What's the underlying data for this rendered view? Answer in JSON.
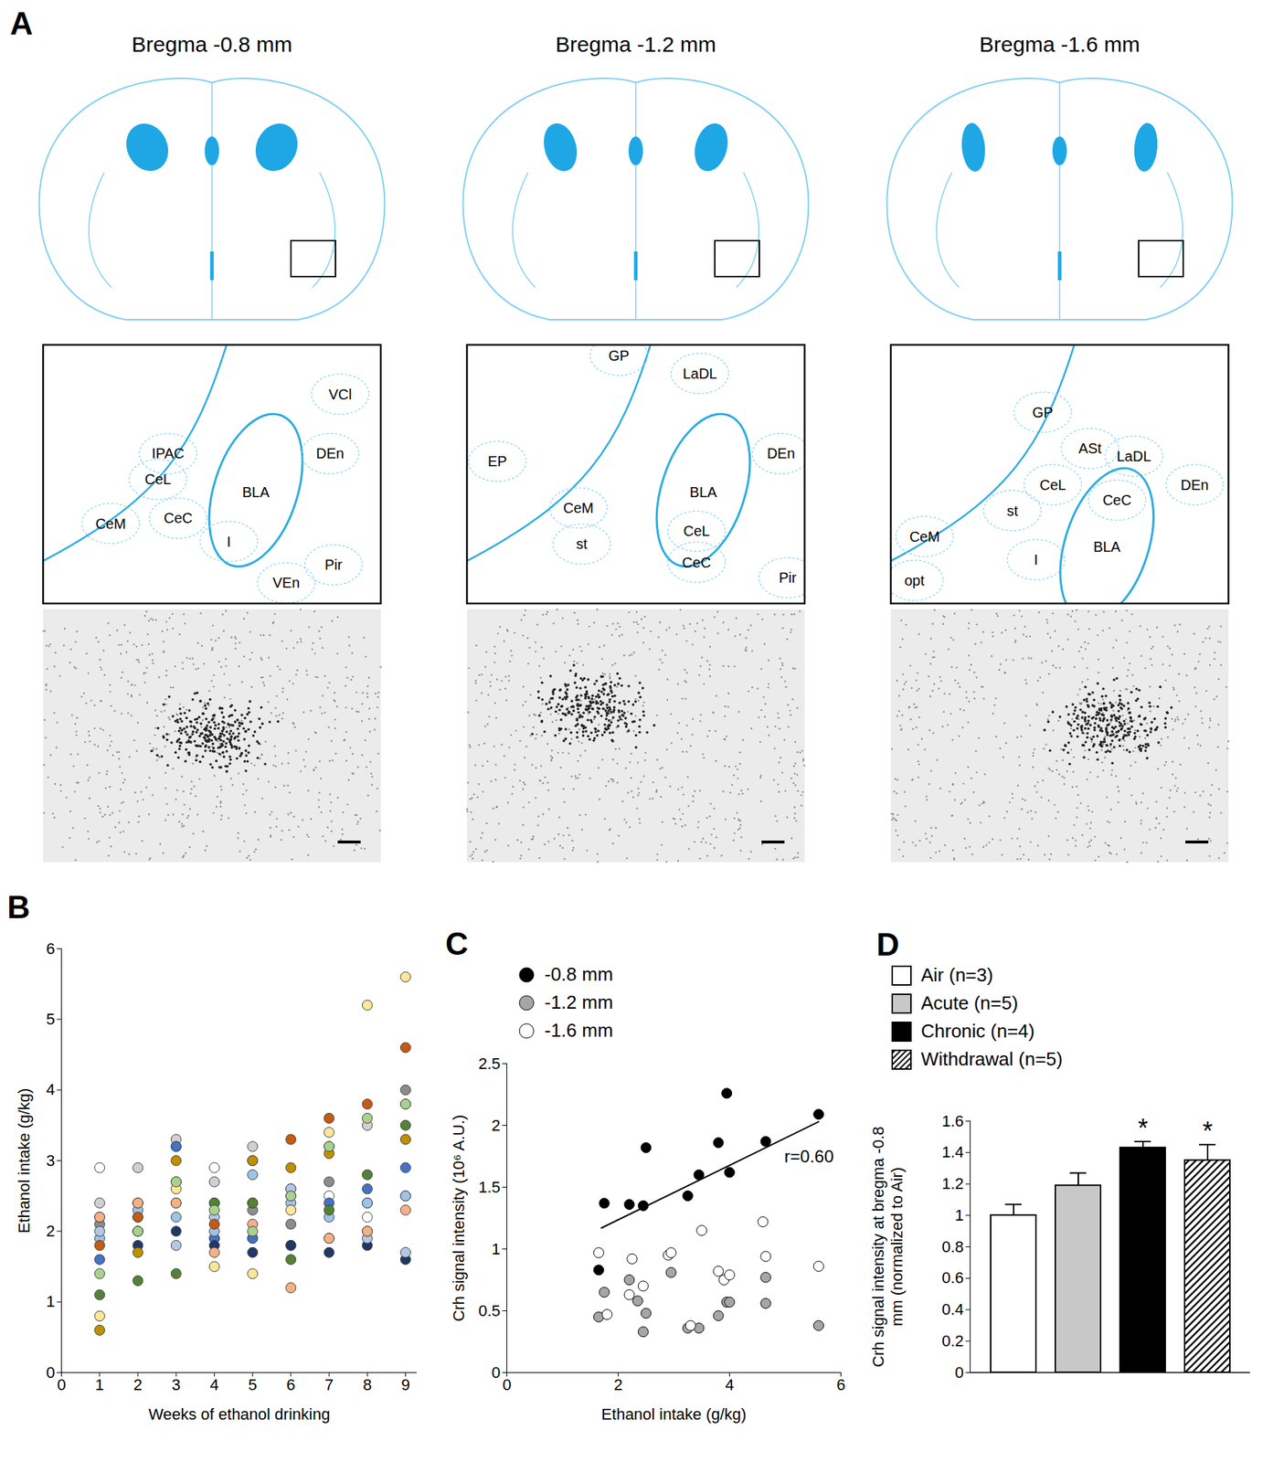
{
  "panel_A": {
    "label": "A",
    "sections": [
      {
        "title": "Bregma -0.8 mm",
        "regions": [
          "IPAC",
          "CeL",
          "CeM",
          "CeC",
          "BLA",
          "VCl",
          "DEn",
          "I",
          "VEn",
          "Pir"
        ]
      },
      {
        "title": "Bregma -1.2 mm",
        "regions": [
          "GP",
          "LaDL",
          "EP",
          "DEn",
          "BLA",
          "CeM",
          "CeL",
          "st",
          "CeC",
          "Pir"
        ]
      },
      {
        "title": "Bregma -1.6 mm",
        "regions": [
          "GP",
          "ASt",
          "LaDL",
          "CeL",
          "CeC",
          "DEn",
          "st",
          "BLA",
          "CeM",
          "I",
          "opt"
        ]
      }
    ]
  },
  "chart_data": [
    {
      "title": "B",
      "type": "scatter",
      "marker": "circle",
      "grid": false,
      "x": [
        1,
        2,
        3,
        4,
        5,
        6,
        7,
        8,
        9
      ],
      "series": [
        {
          "color": "#ffffff",
          "values": [
            2.9,
            2.0,
            2.7,
            2.9,
            1.9,
            2.6,
            2.5,
            2.2,
            2.5
          ]
        },
        {
          "color": "#d0d0d0",
          "values": [
            2.4,
            2.9,
            3.3,
            2.7,
            3.2,
            2.5,
            3.2,
            3.5,
            3.8
          ]
        },
        {
          "color": "#8c8c8c",
          "values": [
            2.1,
            2.2,
            3.2,
            1.9,
            2.3,
            2.1,
            2.7,
            2.4,
            4.0
          ]
        },
        {
          "color": "#4472c4",
          "values": [
            1.6,
            2.0,
            3.2,
            1.9,
            1.9,
            1.8,
            2.4,
            2.6,
            2.9
          ]
        },
        {
          "color": "#203864",
          "values": [
            2.2,
            1.8,
            2.0,
            1.8,
            1.7,
            1.8,
            1.7,
            1.8,
            1.6
          ]
        },
        {
          "color": "#9dc3e6",
          "values": [
            1.9,
            2.3,
            2.2,
            2.0,
            2.8,
            2.4,
            2.2,
            2.4,
            2.5
          ]
        },
        {
          "color": "#b4c7e7",
          "values": [
            2.0,
            2.4,
            1.8,
            2.2,
            2.4,
            2.6,
            1.9,
            1.9,
            1.7
          ]
        },
        {
          "color": "#c55a11",
          "values": [
            1.8,
            2.2,
            2.4,
            2.1,
            3.0,
            3.3,
            3.6,
            3.8,
            4.6
          ]
        },
        {
          "color": "#bf9000",
          "values": [
            0.6,
            1.7,
            3.0,
            2.4,
            3.0,
            2.9,
            3.1,
            2.0,
            3.3
          ]
        },
        {
          "color": "#ffe699",
          "values": [
            0.8,
            2.4,
            2.6,
            1.5,
            1.4,
            2.3,
            3.4,
            5.2,
            5.6
          ]
        },
        {
          "color": "#f4b183",
          "values": [
            2.2,
            2.4,
            2.4,
            1.7,
            2.1,
            1.2,
            1.9,
            2.0,
            2.3
          ]
        },
        {
          "color": "#548235",
          "values": [
            1.1,
            1.3,
            1.4,
            2.4,
            2.4,
            1.6,
            2.3,
            2.8,
            3.5
          ]
        },
        {
          "color": "#a9d18e",
          "values": [
            1.4,
            2.0,
            2.7,
            2.3,
            2.0,
            2.5,
            3.2,
            3.6,
            3.8
          ]
        }
      ],
      "xlabel": "Weeks of ethanol drinking",
      "ylabel": "Ethanol intake (g/kg)",
      "xlim": [
        0,
        9.3
      ],
      "xticks": [
        0,
        1,
        2,
        3,
        4,
        5,
        6,
        7,
        8,
        9
      ],
      "ylim": [
        0,
        6
      ],
      "yticks": [
        0,
        1,
        2,
        3,
        4,
        5,
        6
      ]
    },
    {
      "title": "C",
      "type": "scatter",
      "marker": "circle",
      "grid": false,
      "legend": "top-left",
      "series": [
        {
          "name": "-0.8 mm",
          "color": "#000000",
          "x": [
            1.65,
            1.75,
            2.2,
            2.45,
            2.5,
            3.25,
            3.45,
            3.8,
            3.95,
            4.0,
            4.65,
            5.6
          ],
          "values": [
            0.83,
            1.37,
            1.36,
            1.35,
            1.82,
            1.43,
            1.6,
            1.86,
            2.26,
            1.62,
            1.87,
            2.09
          ]
        },
        {
          "name": "-1.2 mm",
          "color": "#a6a6a6",
          "x": [
            1.65,
            1.75,
            2.2,
            2.35,
            2.45,
            2.5,
            2.95,
            3.25,
            3.45,
            3.8,
            3.95,
            4.0,
            4.65,
            4.65,
            5.6
          ],
          "values": [
            0.45,
            0.65,
            0.75,
            0.58,
            0.33,
            0.48,
            0.81,
            0.36,
            0.36,
            0.46,
            0.57,
            0.57,
            0.77,
            0.56,
            0.38
          ]
        },
        {
          "name": "-1.6 mm",
          "color": "#ffffff",
          "x": [
            1.65,
            1.8,
            2.2,
            2.25,
            2.45,
            2.9,
            2.95,
            3.3,
            3.5,
            3.8,
            3.9,
            4.0,
            4.6,
            4.65,
            5.6
          ],
          "values": [
            0.97,
            0.47,
            0.63,
            0.92,
            0.7,
            0.95,
            0.97,
            0.38,
            1.15,
            0.82,
            0.75,
            0.79,
            1.22,
            0.94,
            0.86
          ]
        }
      ],
      "trendline": {
        "x": [
          1.7,
          5.6
        ],
        "y": [
          1.17,
          2.03
        ]
      },
      "annotations": [
        "r=0.60"
      ],
      "xlabel": "Ethanol intake (g/kg)",
      "ylabel": "Crh signal intensity (10⁶ A.U.)",
      "xlim": [
        0,
        6
      ],
      "xticks": [
        0,
        2,
        4,
        6
      ],
      "ylim": [
        0,
        2.5
      ],
      "yticks": [
        0,
        0.5,
        1,
        1.5,
        2,
        2.5
      ]
    },
    {
      "title": "D",
      "type": "bar",
      "legend": "top-left",
      "tick_labels": "y",
      "categories": [
        "Air (n=3)",
        "Acute (n=5)",
        "Chronic (n=4)",
        "Withdrawal (n=5)"
      ],
      "values": [
        1.0,
        1.19,
        1.43,
        1.35
      ],
      "errors": [
        0.07,
        0.08,
        0.04,
        0.1
      ],
      "annotations": [
        null,
        null,
        "*",
        "*"
      ],
      "colors": [
        "#ffffff",
        "#c8c8c8",
        "#000000",
        "hatch"
      ],
      "ylabel": "Crh signal intensity at bregma -0.8 mm (normalized to Air)",
      "ylim": [
        0,
        1.6
      ],
      "yticks": [
        0,
        0.2,
        0.4,
        0.6,
        0.8,
        1,
        1.2,
        1.4,
        1.6
      ]
    }
  ]
}
